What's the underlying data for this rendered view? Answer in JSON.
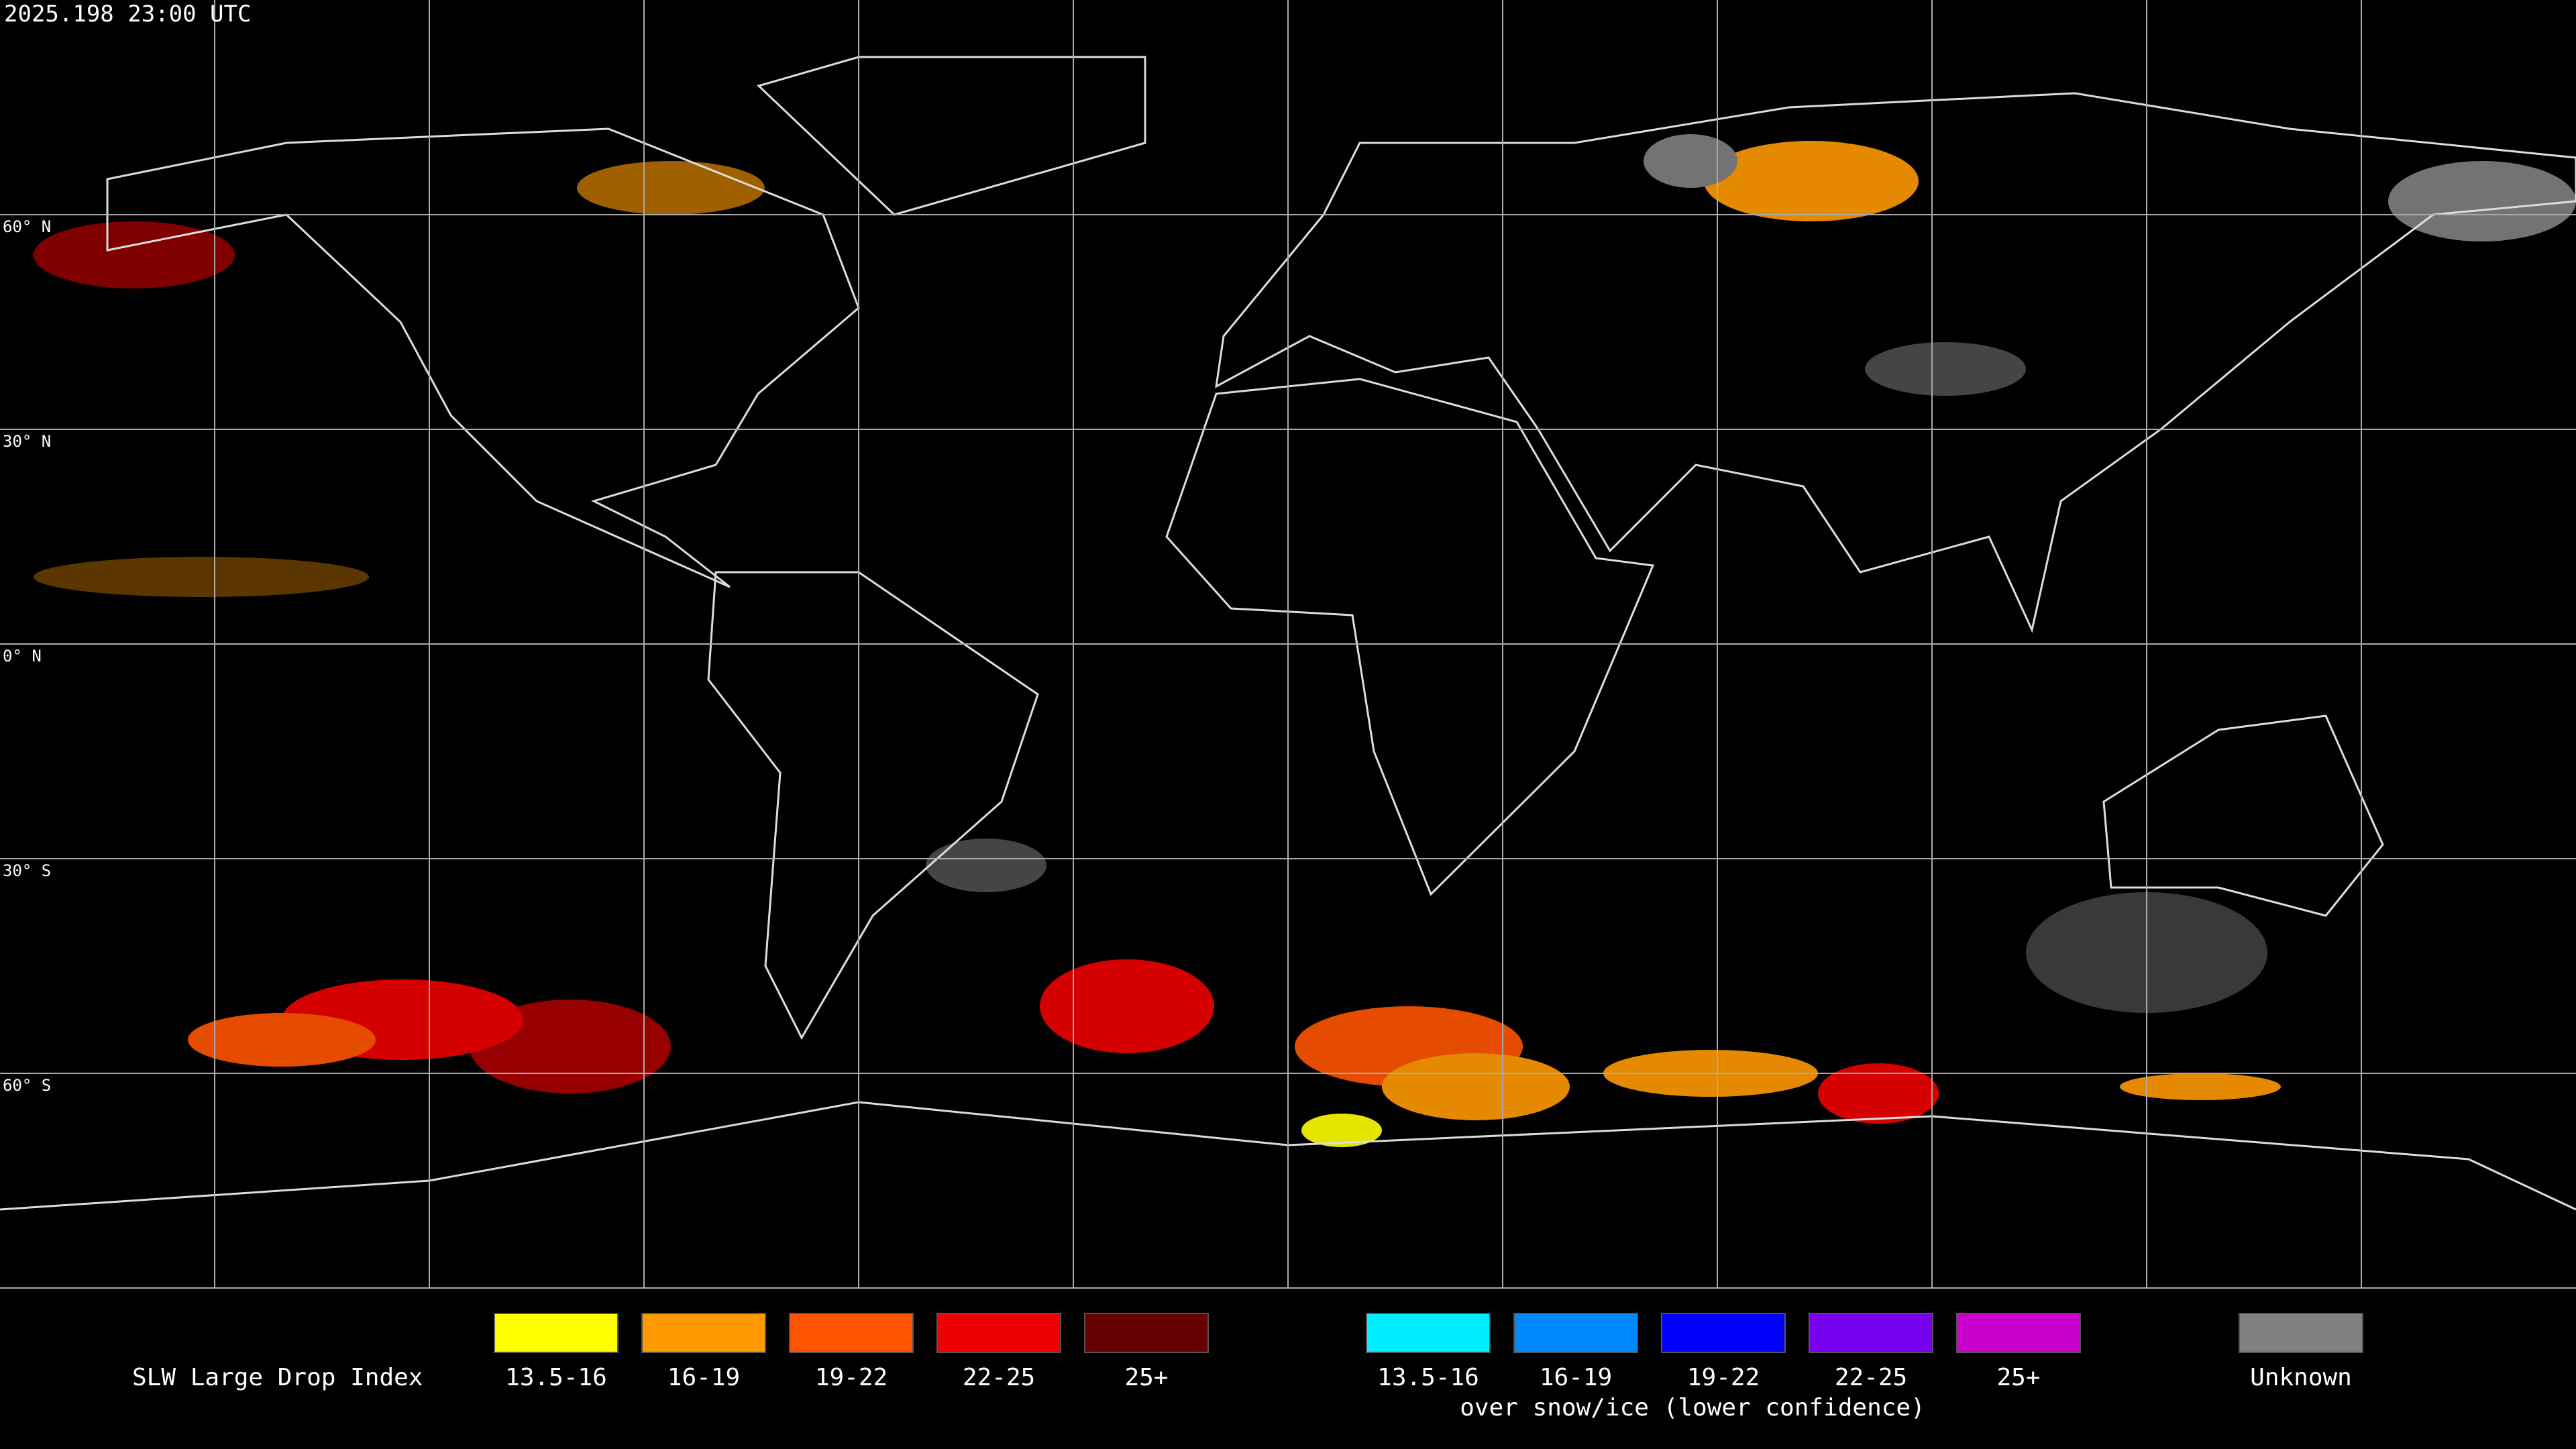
{
  "header": {
    "timestamp": "2025.198 23:00 UTC"
  },
  "map": {
    "latitude_labels": [
      "60° N",
      "30° N",
      "0° N",
      "30° S",
      "60° S"
    ]
  },
  "legend": {
    "title": "SLW Large Drop Index",
    "liquid": [
      {
        "label": "13.5-16",
        "color": "#ffff00"
      },
      {
        "label": "16-19",
        "color": "#ff9900"
      },
      {
        "label": "19-22",
        "color": "#ff5500"
      },
      {
        "label": "22-25",
        "color": "#ee0000"
      },
      {
        "label": "25+",
        "color": "#660000"
      }
    ],
    "snow_ice": [
      {
        "label": "13.5-16",
        "color": "#00eeff"
      },
      {
        "label": "16-19",
        "color": "#0088ff"
      },
      {
        "label": "19-22",
        "color": "#0000ff"
      },
      {
        "label": "22-25",
        "color": "#7700ee"
      },
      {
        "label": "25+",
        "color": "#cc00cc"
      }
    ],
    "snow_ice_note": "over snow/ice (lower confidence)",
    "unknown": {
      "label": "Unknown",
      "color": "#808080"
    }
  }
}
